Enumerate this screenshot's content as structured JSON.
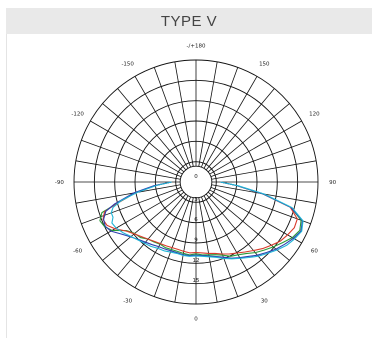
{
  "header": {
    "title": "TYPE V"
  },
  "chart_data": {
    "type": "polar",
    "title": "TYPE V",
    "angle_ticks": [
      {
        "deg": 180,
        "label": "-/+180"
      },
      {
        "deg": -150,
        "label": "-150"
      },
      {
        "deg": 150,
        "label": "150"
      },
      {
        "deg": -120,
        "label": "-120"
      },
      {
        "deg": 120,
        "label": "120"
      },
      {
        "deg": -90,
        "label": "-90"
      },
      {
        "deg": 90,
        "label": "90"
      },
      {
        "deg": -60,
        "label": "-60"
      },
      {
        "deg": 60,
        "label": "60"
      },
      {
        "deg": -30,
        "label": "-30"
      },
      {
        "deg": 30,
        "label": "30"
      },
      {
        "deg": 0,
        "label": "0"
      }
    ],
    "radial_ticks": [
      {
        "value": 3,
        "label": "3"
      },
      {
        "value": 6,
        "label": "6"
      },
      {
        "value": 9,
        "label": "9"
      },
      {
        "value": 12,
        "label": "12"
      },
      {
        "value": 15,
        "label": "15"
      }
    ],
    "rmax": 18,
    "angle_step": 10,
    "series": [
      {
        "color": "#2a9a3a",
        "points": [
          [
            -90,
            3.6
          ],
          [
            -85,
            6
          ],
          [
            -80,
            9
          ],
          [
            -75,
            12
          ],
          [
            -72,
            14.6
          ],
          [
            -68,
            15.3
          ],
          [
            -64,
            15
          ],
          [
            -60,
            14.3
          ],
          [
            -55,
            12.5
          ],
          [
            -50,
            11.8
          ],
          [
            -45,
            11.6
          ],
          [
            -40,
            11
          ],
          [
            -35,
            10.8
          ],
          [
            -30,
            10.6
          ],
          [
            -25,
            10.7
          ],
          [
            -20,
            10.6
          ],
          [
            -15,
            10.6
          ],
          [
            -10,
            10.7
          ],
          [
            -5,
            10.8
          ],
          [
            0,
            10.6
          ],
          [
            5,
            10.8
          ],
          [
            10,
            10.9
          ],
          [
            15,
            11.1
          ],
          [
            20,
            11.5
          ],
          [
            25,
            12.1
          ],
          [
            30,
            12.4
          ],
          [
            35,
            12.9
          ],
          [
            40,
            13.6
          ],
          [
            45,
            14.2
          ],
          [
            50,
            14.9
          ],
          [
            55,
            15.6
          ],
          [
            60,
            16.4
          ],
          [
            65,
            16.9
          ],
          [
            70,
            16.5
          ],
          [
            75,
            14.5
          ],
          [
            80,
            10
          ],
          [
            85,
            6
          ],
          [
            90,
            3.6
          ]
        ]
      },
      {
        "color": "#d83a2a",
        "points": [
          [
            -90,
            3.6
          ],
          [
            -85,
            6
          ],
          [
            -80,
            9
          ],
          [
            -75,
            12
          ],
          [
            -72,
            14.2
          ],
          [
            -68,
            14.8
          ],
          [
            -64,
            14.6
          ],
          [
            -60,
            13.8
          ],
          [
            -55,
            12.6
          ],
          [
            -50,
            11.9
          ],
          [
            -45,
            11.4
          ],
          [
            -40,
            11
          ],
          [
            -35,
            10.7
          ],
          [
            -30,
            10.5
          ],
          [
            -25,
            10.4
          ],
          [
            -20,
            10.3
          ],
          [
            -15,
            10.3
          ],
          [
            -10,
            10.4
          ],
          [
            -5,
            10.5
          ],
          [
            0,
            10.4
          ],
          [
            5,
            10.5
          ],
          [
            10,
            10.7
          ],
          [
            15,
            10.9
          ],
          [
            20,
            11.3
          ],
          [
            25,
            11.7
          ],
          [
            30,
            12.1
          ],
          [
            35,
            12.6
          ],
          [
            40,
            13.2
          ],
          [
            45,
            13.9
          ],
          [
            50,
            14.5
          ],
          [
            55,
            15.2
          ],
          [
            60,
            15.6
          ],
          [
            65,
            16
          ],
          [
            70,
            15.9
          ],
          [
            75,
            14.4
          ],
          [
            80,
            10
          ],
          [
            85,
            6
          ],
          [
            90,
            3.6
          ]
        ]
      },
      {
        "color": "#2b3fae",
        "points": [
          [
            -90,
            3.6
          ],
          [
            -85,
            6.2
          ],
          [
            -80,
            9.3
          ],
          [
            -75,
            12.4
          ],
          [
            -72,
            14
          ],
          [
            -68,
            14.7
          ],
          [
            -64,
            14.9
          ],
          [
            -60,
            14.5
          ],
          [
            -55,
            13.4
          ],
          [
            -50,
            12.6
          ],
          [
            -45,
            12
          ],
          [
            -40,
            11.6
          ],
          [
            -35,
            11.3
          ],
          [
            -30,
            11
          ],
          [
            -25,
            10.9
          ],
          [
            -20,
            10.8
          ],
          [
            -15,
            10.8
          ],
          [
            -10,
            10.9
          ],
          [
            -5,
            10.9
          ],
          [
            0,
            10.8
          ],
          [
            5,
            10.9
          ],
          [
            10,
            11.1
          ],
          [
            15,
            11.4
          ],
          [
            20,
            11.8
          ],
          [
            25,
            12.4
          ],
          [
            30,
            12.9
          ],
          [
            35,
            13.4
          ],
          [
            40,
            14.1
          ],
          [
            45,
            14.7
          ],
          [
            50,
            15.4
          ],
          [
            55,
            16
          ],
          [
            60,
            16.6
          ],
          [
            65,
            17.1
          ],
          [
            70,
            16.7
          ],
          [
            75,
            14.5
          ],
          [
            80,
            10
          ],
          [
            85,
            6
          ],
          [
            90,
            3.6
          ]
        ]
      },
      {
        "color": "#1fb4d6",
        "points": [
          [
            -90,
            3.6
          ],
          [
            -85,
            5.8
          ],
          [
            -80,
            8.8
          ],
          [
            -76,
            11.4
          ],
          [
            -73,
            12.8
          ],
          [
            -70,
            13.3
          ],
          [
            -67,
            13.3
          ],
          [
            -64,
            13.8
          ],
          [
            -60,
            13.6
          ],
          [
            -55,
            13.1
          ],
          [
            -50,
            12.5
          ],
          [
            -45,
            12.1
          ],
          [
            -40,
            11.8
          ],
          [
            -35,
            11.6
          ],
          [
            -30,
            11.3
          ],
          [
            -25,
            11.2
          ],
          [
            -20,
            11
          ],
          [
            -15,
            10.9
          ],
          [
            -10,
            11
          ],
          [
            -5,
            11
          ],
          [
            0,
            10.9
          ],
          [
            5,
            11
          ],
          [
            10,
            11.2
          ],
          [
            15,
            11.5
          ],
          [
            20,
            12
          ],
          [
            25,
            12.5
          ],
          [
            30,
            13
          ],
          [
            35,
            13.6
          ],
          [
            40,
            14.3
          ],
          [
            45,
            14.9
          ],
          [
            50,
            15.6
          ],
          [
            55,
            16.3
          ],
          [
            60,
            16.8
          ],
          [
            65,
            17.2
          ],
          [
            70,
            16.8
          ],
          [
            75,
            14.7
          ],
          [
            80,
            10.2
          ],
          [
            85,
            6.2
          ],
          [
            90,
            3.6
          ]
        ]
      }
    ]
  }
}
